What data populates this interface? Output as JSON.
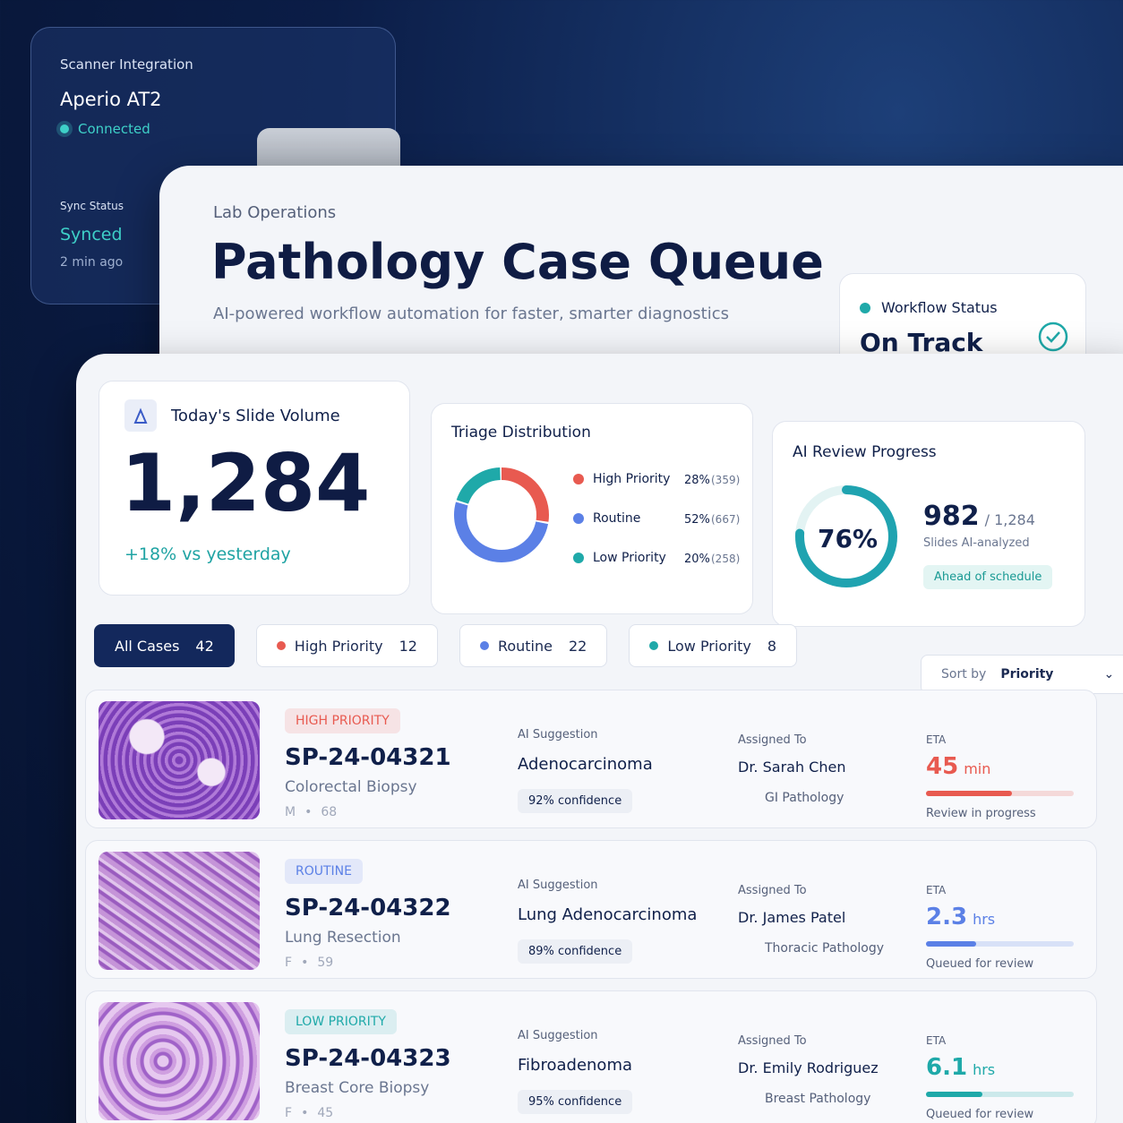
{
  "scanner": {
    "title": "Scanner Integration",
    "device": "Aperio AT2",
    "status": "Connected",
    "sync_label": "Sync Status",
    "sync_value": "Synced",
    "sync_time": "2 min ago"
  },
  "header": {
    "eyebrow": "Lab Operations",
    "title": "Pathology Case Queue",
    "subtitle": "AI-powered workflow automation for faster, smarter diagnostics"
  },
  "workflow": {
    "label": "Workflow Status",
    "value": "On Track"
  },
  "volume": {
    "label": "Today's Slide Volume",
    "value": "1,284",
    "change": "+18% vs yesterday"
  },
  "triage": {
    "title": "Triage Distribution",
    "categories": [
      "High Priority",
      "Routine",
      "Low Priority"
    ],
    "values": [
      28,
      52,
      20
    ],
    "value_labels": [
      "28%",
      "52%",
      "20%"
    ],
    "count_labels": [
      "(359)",
      "(667)",
      "(258)"
    ],
    "colors": [
      "#e85a50",
      "#5b80e6",
      "#1fa9a9"
    ]
  },
  "ai_review": {
    "title": "AI Review Progress",
    "value": 76,
    "value_label": "76%",
    "reviewed": "982",
    "total": "/ 1,284",
    "caption": "Slides AI-analyzed",
    "badge": "Ahead of schedule",
    "color": "#1fa3b0"
  },
  "filters": [
    {
      "label": "All Cases",
      "count": 42
    },
    {
      "label": "High Priority",
      "count": 12,
      "color": "#e85a50"
    },
    {
      "label": "Routine",
      "count": 22,
      "color": "#5b80e6"
    },
    {
      "label": "Low Priority",
      "count": 8,
      "color": "#1fa9a9"
    }
  ],
  "sort": {
    "label": "Sort by",
    "value": "Priority"
  },
  "cases": [
    {
      "priority": "HIGH PRIORITY",
      "color": "#e85a50",
      "id": "SP-24-04321",
      "specimen": "Colorectal Biopsy",
      "sex": "M",
      "age": 68,
      "ai_label": "AI Suggestion",
      "diagnosis": "Adenocarcinoma",
      "confidence": "92% confidence",
      "assigned_label": "Assigned To",
      "doctor": "Dr. Sarah Chen",
      "department": "GI Pathology",
      "eta_label": "ETA",
      "eta_value": "45",
      "eta_unit": "min",
      "progress": 58,
      "eta_status": "Review in progress"
    },
    {
      "priority": "ROUTINE",
      "color": "#5b80e6",
      "id": "SP-24-04322",
      "specimen": "Lung Resection",
      "sex": "F",
      "age": 59,
      "ai_label": "AI Suggestion",
      "diagnosis": "Lung Adenocarcinoma",
      "confidence": "89% confidence",
      "assigned_label": "Assigned To",
      "doctor": "Dr. James Patel",
      "department": "Thoracic Pathology",
      "eta_label": "ETA",
      "eta_value": "2.3",
      "eta_unit": "hrs",
      "progress": 34,
      "eta_status": "Queued for review"
    },
    {
      "priority": "LOW PRIORITY",
      "color": "#1fa9a9",
      "id": "SP-24-04323",
      "specimen": "Breast Core Biopsy",
      "sex": "F",
      "age": 45,
      "ai_label": "AI Suggestion",
      "diagnosis": "Fibroadenoma",
      "confidence": "95% confidence",
      "assigned_label": "Assigned To",
      "doctor": "Dr. Emily Rodriguez",
      "department": "Breast Pathology",
      "eta_label": "ETA",
      "eta_value": "6.1",
      "eta_unit": "hrs",
      "progress": 38,
      "eta_status": "Queued for review"
    }
  ]
}
